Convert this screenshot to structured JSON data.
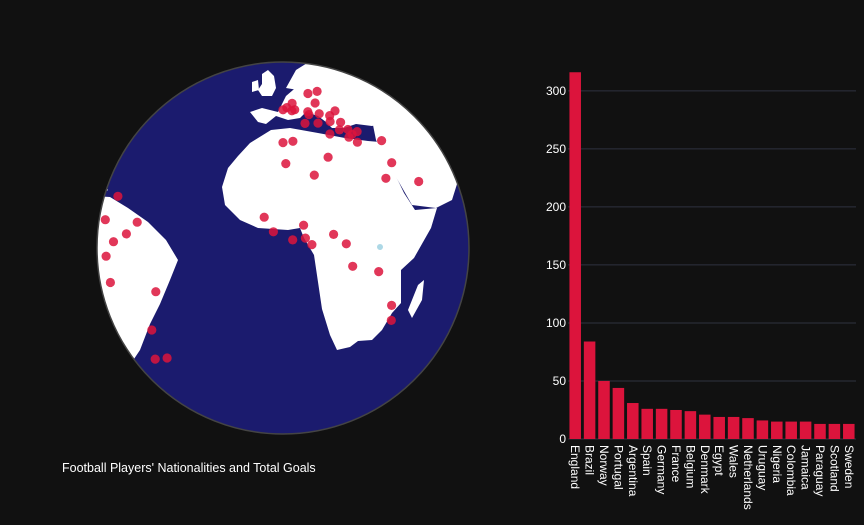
{
  "caption": "Football Players' Nationalities and Total Goals",
  "colors": {
    "background": "#111111",
    "ocean": "#1b1b6e",
    "land": "#ffffff",
    "marker": "#dc143c",
    "bar": "#dc143c",
    "grid": "#2f3240",
    "lake": "#add8e6"
  },
  "chart_data": [
    {
      "type": "scatter-geo",
      "projection": "orthographic",
      "markers": [
        {
          "lon": -2,
          "lat": 53
        },
        {
          "lon": -3,
          "lat": 56
        },
        {
          "lon": -3.5,
          "lat": 52.5
        },
        {
          "lon": -6,
          "lat": 54
        },
        {
          "lon": -8,
          "lat": 53
        },
        {
          "lon": 2,
          "lat": 47
        },
        {
          "lon": 4.5,
          "lat": 52
        },
        {
          "lon": 4.7,
          "lat": 50.7
        },
        {
          "lon": 10,
          "lat": 51
        },
        {
          "lon": 10,
          "lat": 56
        },
        {
          "lon": 15,
          "lat": 62
        },
        {
          "lon": 8,
          "lat": 61
        },
        {
          "lon": 8,
          "lat": 47
        },
        {
          "lon": 14,
          "lat": 47.5
        },
        {
          "lon": 19,
          "lat": 47
        },
        {
          "lon": 15,
          "lat": 50
        },
        {
          "lon": 19,
          "lat": 52
        },
        {
          "lon": 12,
          "lat": 42.5
        },
        {
          "lon": 17,
          "lat": 44
        },
        {
          "lon": 21,
          "lat": 44
        },
        {
          "lon": 22,
          "lat": 42
        },
        {
          "lon": 20,
          "lat": 41
        },
        {
          "lon": 25,
          "lat": 43
        },
        {
          "lon": 23,
          "lat": 39
        },
        {
          "lon": 35,
          "lat": 39
        },
        {
          "lon": -8,
          "lat": 39.5
        },
        {
          "lon": -4,
          "lat": 40
        },
        {
          "lon": 9,
          "lat": 34
        },
        {
          "lon": 3,
          "lat": 28
        },
        {
          "lon": -7,
          "lat": 32
        },
        {
          "lon": 30,
          "lat": 26
        },
        {
          "lon": 35,
          "lat": 31
        },
        {
          "lon": 45,
          "lat": 24
        },
        {
          "lon": -14,
          "lat": 14.5
        },
        {
          "lon": -11,
          "lat": 10
        },
        {
          "lon": -1.5,
          "lat": 12
        },
        {
          "lon": -5,
          "lat": 7.5
        },
        {
          "lon": -1,
          "lat": 8
        },
        {
          "lon": 1,
          "lat": 6
        },
        {
          "lon": 8,
          "lat": 9
        },
        {
          "lon": 12,
          "lat": 6
        },
        {
          "lon": 14,
          "lat": -1
        },
        {
          "lon": 23,
          "lat": -3
        },
        {
          "lon": 29,
          "lat": -14
        },
        {
          "lon": 30,
          "lat": -19
        },
        {
          "lon": -61,
          "lat": 11
        },
        {
          "lon": -66,
          "lat": 7
        },
        {
          "lon": -74,
          "lat": 4
        },
        {
          "lon": -77,
          "lat": 18
        },
        {
          "lon": -84,
          "lat": 10
        },
        {
          "lon": -80,
          "lat": -1
        },
        {
          "lon": -78,
          "lat": -9
        },
        {
          "lon": -52,
          "lat": -10
        },
        {
          "lon": -56,
          "lat": -33
        },
        {
          "lon": -58,
          "lat": -23
        },
        {
          "lon": -64,
          "lat": -34
        }
      ]
    },
    {
      "type": "bar",
      "categories": [
        "England",
        "Brazil",
        "Norway",
        "Portugal",
        "Argentina",
        "Spain",
        "Germany",
        "France",
        "Belgium",
        "Denmark",
        "Egypt",
        "Wales",
        "Netherlands",
        "Uruguay",
        "Nigeria",
        "Colombia",
        "Jamaica",
        "Paraguay",
        "Scotland",
        "Sweden"
      ],
      "values": [
        316,
        84,
        50,
        44,
        31,
        26,
        26,
        25,
        24,
        21,
        19,
        19,
        18,
        16,
        15,
        15,
        15,
        13,
        13,
        13
      ],
      "ylim": [
        0,
        330
      ],
      "yticks": [
        0,
        50,
        100,
        150,
        200,
        250,
        300
      ],
      "grid": true
    }
  ]
}
